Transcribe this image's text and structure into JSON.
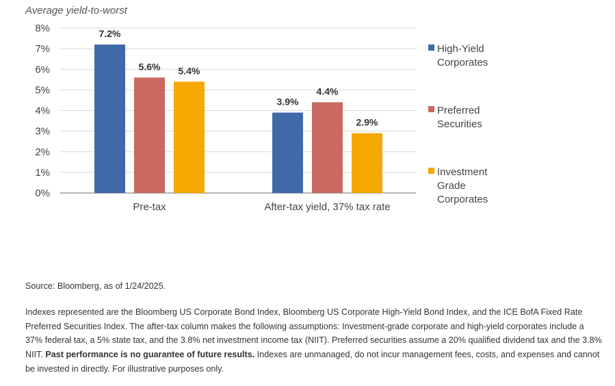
{
  "chart_data": {
    "type": "bar",
    "title": "",
    "ylabel": "Average yield-to-worst",
    "xlabel": "",
    "ylim": [
      0,
      8
    ],
    "yticks": [
      "0%",
      "1%",
      "2%",
      "3%",
      "4%",
      "5%",
      "6%",
      "7%",
      "8%"
    ],
    "categories": [
      "Pre-tax",
      "After-tax yield, 37% tax rate"
    ],
    "series": [
      {
        "name": "High-Yield Corporates",
        "legend_lines": [
          "High-Yield",
          "Corporates"
        ],
        "color": "#4169aa",
        "values": [
          7.2,
          3.9
        ],
        "labels": [
          "7.2%",
          "3.9%"
        ]
      },
      {
        "name": "Preferred Securities",
        "legend_lines": [
          "Preferred",
          "Securities"
        ],
        "color": "#c9695f",
        "values": [
          5.6,
          4.4
        ],
        "labels": [
          "5.6%",
          "4.4%"
        ]
      },
      {
        "name": "Investment Grade Corporates",
        "legend_lines": [
          "Investment",
          "Grade",
          "Corporates"
        ],
        "color": "#f5a800",
        "values": [
          5.4,
          2.9
        ],
        "labels": [
          "5.4%",
          "2.9%"
        ]
      }
    ],
    "grid": true,
    "legend": "right"
  },
  "notes": {
    "source": "Source: Bloomberg, as of 1/24/2025.",
    "body_start": "Indexes represented are the Bloomberg US Corporate Bond Index, Bloomberg US Corporate High-Yield Bond Index, and the ICE BofA Fixed Rate Preferred Securities Index. The after-tax column makes the following assumptions: Investment-grade corporate and high-yield corporates include a 37% federal tax, a 5% state tax, and the 3.8% net investment income tax (NIIT). Preferred securities assume a 20% qualified dividend tax and the 3.8% NIIT.",
    "body_bold": "Past performance is no guarantee of future results.",
    "body_end": "Indexes are unmanaged, do not incur management fees, costs, and expenses and cannot be invested in directly. For illustrative purposes only."
  }
}
